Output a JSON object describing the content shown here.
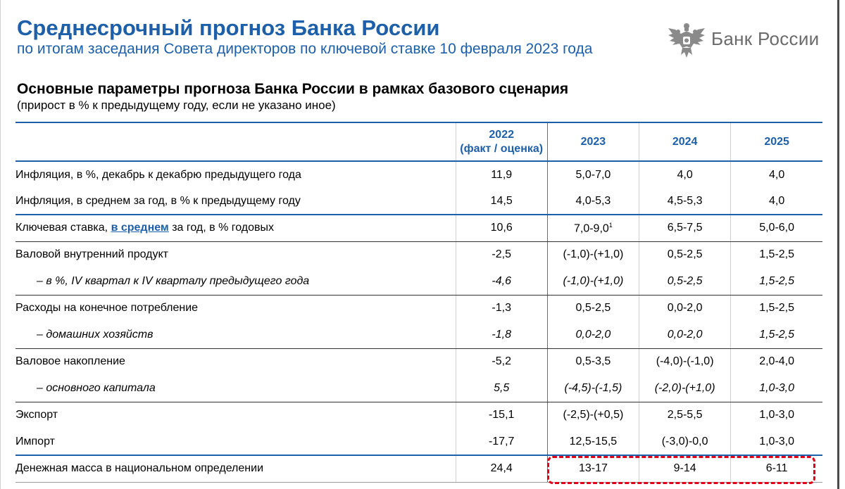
{
  "header": {
    "title": "Среднесрочный прогноз Банка России",
    "subtitle": "по итогам заседания Совета директоров по ключевой ставке 10 февраля 2023 года",
    "logo_text": "Банк России",
    "logo_icon": "double-headed-eagle-emblem"
  },
  "table": {
    "title": "Основные параметры прогноза Банка России в рамках базового сценария",
    "note": "(прирост в % к предыдущему году, если не указано иное)",
    "columns": {
      "y2022_line1": "2022",
      "y2022_line2": "(факт / оценка)",
      "y2023": "2023",
      "y2024": "2024",
      "y2025": "2025"
    },
    "rows": [
      {
        "label": "Инфляция, в %, декабрь к декабрю предыдущего года",
        "v2022": "11,9",
        "v2023": "5,0-7,0",
        "v2024": "4,0",
        "v2025": "4,0"
      },
      {
        "label": "Инфляция, в среднем за год, в % к предыдущему году",
        "v2022": "14,5",
        "v2023": "4,0-5,3",
        "v2024": "4,5-5,3",
        "v2025": "4,0"
      },
      {
        "label_pre": "Ключевая ставка, ",
        "label_link": "в среднем",
        "label_post": " за год, в % годовых",
        "v2022": "10,6",
        "v2023": "7,0-9,0",
        "v2023_sup": "1",
        "v2024": "6,5-7,5",
        "v2025": "5,0-6,0"
      },
      {
        "label": "Валовой внутренний продукт",
        "v2022": "-2,5",
        "v2023": "(-1,0)-(+1,0)",
        "v2024": "0,5-2,5",
        "v2025": "1,5-2,5"
      },
      {
        "label": "– в %, IV квартал к IV кварталу предыдущего года",
        "v2022": "-4,6",
        "v2023": "(-1,0)-(+1,0)",
        "v2024": "0,5-2,5",
        "v2025": "1,5-2,5"
      },
      {
        "label": "Расходы на конечное потребление",
        "v2022": "-1,3",
        "v2023": "0,5-2,5",
        "v2024": "0,0-2,0",
        "v2025": "1,5-2,5"
      },
      {
        "label": "– домашних хозяйств",
        "v2022": "-1,8",
        "v2023": "0,0-2,0",
        "v2024": "0,0-2,0",
        "v2025": "1,5-2,5"
      },
      {
        "label": "Валовое накопление",
        "v2022": "-5,2",
        "v2023": "0,5-3,5",
        "v2024": "(-4,0)-(-1,0)",
        "v2025": "2,0-4,0"
      },
      {
        "label": "– основного капитала",
        "v2022": "5,5",
        "v2023": "(-4,5)-(-1,5)",
        "v2024": "(-2,0)-(+1,0)",
        "v2025": "1,0-3,0"
      },
      {
        "label": "Экспорт",
        "v2022": "-15,1",
        "v2023": "(-2,5)-(+0,5)",
        "v2024": "2,5-5,5",
        "v2025": "1,0-3,0"
      },
      {
        "label": "Импорт",
        "v2022": "-17,7",
        "v2023": "12,5-15,5",
        "v2024": "(-3,0)-0,0",
        "v2025": "1,0-3,0"
      },
      {
        "label": "Денежная масса в национальном определении",
        "v2022": "24,4",
        "v2023": "13-17",
        "v2024": "9-14",
        "v2025": "6-11"
      }
    ]
  },
  "colors": {
    "accent_blue": "#1d5fa8",
    "highlight_red": "#e0001b",
    "logo_gray": "#6b6b6b"
  }
}
